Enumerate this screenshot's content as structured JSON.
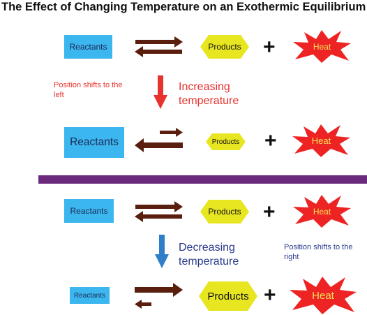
{
  "title": "The Effect of Changing Temperature on an Exothermic Equilibrium",
  "labels": {
    "reactants": "Reactants",
    "products": "Products",
    "heat": "Heat",
    "plus": "+"
  },
  "top": {
    "side_note": "Position shifts to the left",
    "change": "Increasing temperature"
  },
  "bottom": {
    "side_note": "Position shifts to the right",
    "change": "Decreasing temperature"
  },
  "colors": {
    "reactant_box": "#3cb6ee",
    "product_hexagon": "#e8e620",
    "heat_star": "#ee2424",
    "heat_text": "#f6e15a",
    "equilibrium_arrows": "#5a1e0e",
    "divider": "#6b2a7c",
    "increase_arrow": "#e8322e",
    "increase_text": "#e8322e",
    "decrease_arrow": "#2e7fc8",
    "decrease_text": "#2a3a8c"
  }
}
